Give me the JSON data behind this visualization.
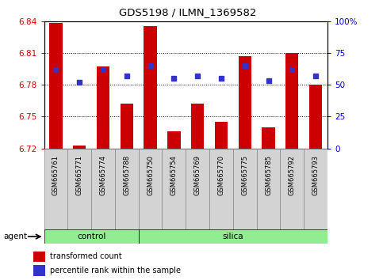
{
  "title": "GDS5198 / ILMN_1369582",
  "samples": [
    "GSM665761",
    "GSM665771",
    "GSM665774",
    "GSM665788",
    "GSM665750",
    "GSM665754",
    "GSM665769",
    "GSM665770",
    "GSM665775",
    "GSM665785",
    "GSM665792",
    "GSM665793"
  ],
  "groups": [
    "control",
    "control",
    "control",
    "control",
    "silica",
    "silica",
    "silica",
    "silica",
    "silica",
    "silica",
    "silica",
    "silica"
  ],
  "bar_values": [
    6.838,
    6.723,
    6.797,
    6.762,
    6.835,
    6.736,
    6.762,
    6.745,
    6.807,
    6.74,
    6.81,
    6.78
  ],
  "dot_values": [
    62,
    52,
    62,
    57,
    65,
    55,
    57,
    55,
    65,
    53,
    62,
    57
  ],
  "ylim": [
    6.72,
    6.84
  ],
  "y_ticks": [
    6.72,
    6.75,
    6.78,
    6.81,
    6.84
  ],
  "y2_ticks": [
    0,
    25,
    50,
    75,
    100
  ],
  "bar_color": "#cc0000",
  "dot_color": "#3333cc",
  "control_color": "#90ee90",
  "silica_color": "#90ee90",
  "tick_bg_color": "#d0d0d0",
  "left_axis_color": "#cc0000",
  "right_axis_color": "#0000cc",
  "plot_bg": "#ffffff",
  "grid_color": "#000000"
}
